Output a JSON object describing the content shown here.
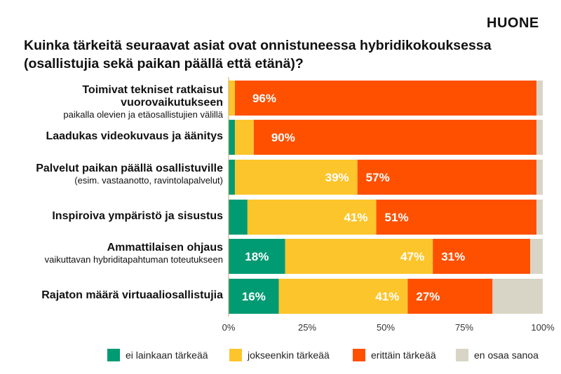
{
  "logo": "HUONE",
  "title_line1": "Kuinka tärkeitä seuraavat asiat ovat onnistuneessa hybridikokouksessa",
  "title_line2": "(osallistujia sekä paikan päällä että etänä)?",
  "chart_data": {
    "type": "bar",
    "orientation": "horizontal",
    "stacked": true,
    "categories": [
      {
        "main": "Toimivat tekniset ratkaisut vuorovaikutukseen",
        "sub": "paikalla olevien ja etäosallistujien välillä"
      },
      {
        "main": "Laadukas videokuvaus ja äänitys",
        "sub": ""
      },
      {
        "main": "Palvelut paikan päällä osallistuville",
        "sub": "(esim. vastaanotto, ravintolapalvelut)"
      },
      {
        "main": "Inspiroiva ympäristö ja sisustus",
        "sub": ""
      },
      {
        "main": "Ammattilaisen ohjaus",
        "sub": "vaikuttavan hybriditapahtuman toteutukseen"
      },
      {
        "main": "Rajaton määrä virtuaaliosallistujia",
        "sub": ""
      }
    ],
    "series": [
      {
        "name": "ei lainkaan tärkeää",
        "color": "#009A73",
        "values": [
          0,
          2,
          2,
          6,
          18,
          16
        ]
      },
      {
        "name": "jokseenkin tärkeää",
        "color": "#FDC52C",
        "values": [
          2,
          6,
          39,
          41,
          47,
          41
        ]
      },
      {
        "name": "erittäin tärkeää",
        "color": "#FF5000",
        "values": [
          96,
          90,
          57,
          51,
          31,
          27
        ]
      },
      {
        "name": "en osaa sanoa",
        "color": "#D8D5C6",
        "values": [
          2,
          2,
          2,
          2,
          4,
          16
        ]
      }
    ],
    "data_labels": [
      [
        null,
        null,
        "96%",
        null
      ],
      [
        null,
        null,
        "90%",
        null
      ],
      [
        null,
        "39%",
        "57%",
        null
      ],
      [
        null,
        "41%",
        "51%",
        null
      ],
      [
        "18%",
        "47%",
        "31%",
        null
      ],
      [
        "16%",
        "41%",
        "27%",
        null
      ]
    ],
    "xlim": [
      0,
      100
    ],
    "xticks": [
      "0%",
      "25%",
      "50%",
      "75%",
      "100%"
    ],
    "legend_position": "bottom",
    "grid": false
  }
}
